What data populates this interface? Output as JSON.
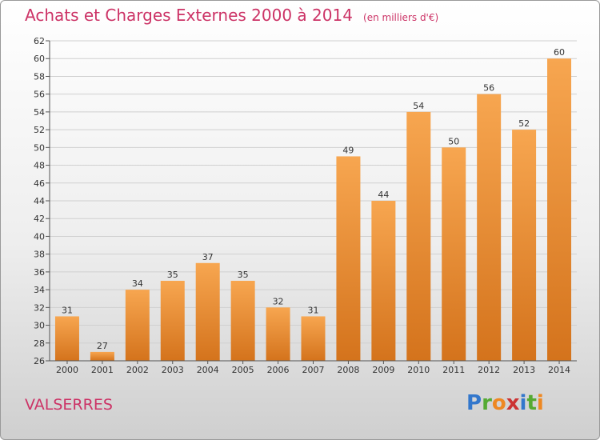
{
  "header": {
    "title": "Achats et Charges Externes 2000 à 2014",
    "unit": "(en milliers d'€)"
  },
  "footer": {
    "commune": "VALSERRES",
    "logo_letters": [
      {
        "char": "P",
        "color": "#3377cc"
      },
      {
        "char": "r",
        "color": "#55aa33"
      },
      {
        "char": "o",
        "color": "#ee8822"
      },
      {
        "char": "x",
        "color": "#cc3333"
      },
      {
        "char": "i",
        "color": "#3377cc"
      },
      {
        "char": "t",
        "color": "#55aa33"
      },
      {
        "char": "i",
        "color": "#ee8822"
      }
    ]
  },
  "colors": {
    "title": "#cc3366",
    "bar_top": "#f7a650",
    "bar_bottom": "#d4731c",
    "grid": "#d0d0d0"
  },
  "chart_data": {
    "type": "bar",
    "title": "Achats et Charges Externes 2000 à 2014",
    "categories": [
      "2000",
      "2001",
      "2002",
      "2003",
      "2004",
      "2005",
      "2006",
      "2007",
      "2008",
      "2009",
      "2010",
      "2011",
      "2012",
      "2013",
      "2014"
    ],
    "values": [
      31,
      27,
      34,
      35,
      37,
      35,
      32,
      31,
      49,
      44,
      54,
      50,
      56,
      52,
      60
    ],
    "ylim": [
      26,
      62
    ],
    "yticks": [
      26,
      28,
      30,
      32,
      34,
      36,
      38,
      40,
      42,
      44,
      46,
      48,
      50,
      52,
      54,
      56,
      58,
      60,
      62
    ],
    "grid": true
  }
}
